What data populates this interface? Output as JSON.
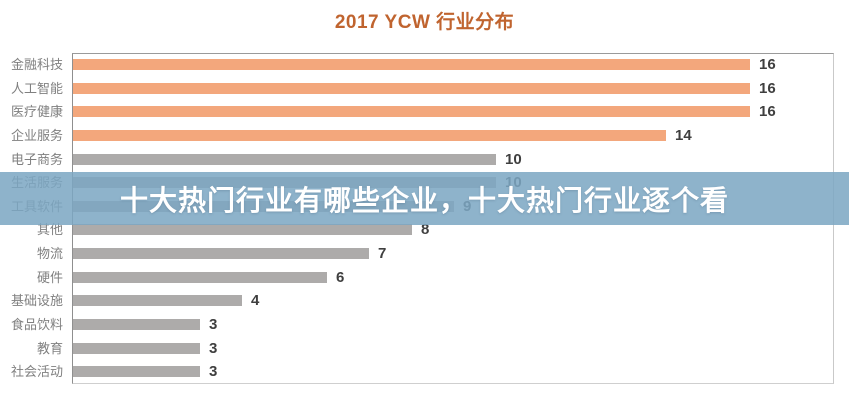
{
  "page": {
    "title": "2017 YCW 行业分布"
  },
  "overlay": {
    "caption": "十大热门行业有哪些企业，十大热门行业逐个看"
  },
  "colors": {
    "title_text": "#c0642f",
    "bar_highlight": "#f3a77c",
    "bar_default": "#adabaa",
    "overlay_blue": "#7ca6c2",
    "category_label": "#808080",
    "value_label": "#3f3f3f"
  },
  "chart_data": {
    "type": "bar",
    "orientation": "horizontal",
    "title": "2017 YCW 行业分布",
    "categories": [
      "金融科技",
      "人工智能",
      "医疗健康",
      "企业服务",
      "电子商务",
      "生活服务",
      "工具软件",
      "其他",
      "物流",
      "硬件",
      "基础设施",
      "食品饮料",
      "教育",
      "社会活动"
    ],
    "values": [
      16,
      16,
      16,
      14,
      10,
      10,
      9,
      8,
      7,
      6,
      4,
      3,
      3,
      3
    ],
    "highlight_top_n": 4,
    "xlim": [
      0,
      18
    ],
    "value_labels_shown": true,
    "grid": false,
    "legend": "none",
    "xlabel": "",
    "ylabel": ""
  }
}
